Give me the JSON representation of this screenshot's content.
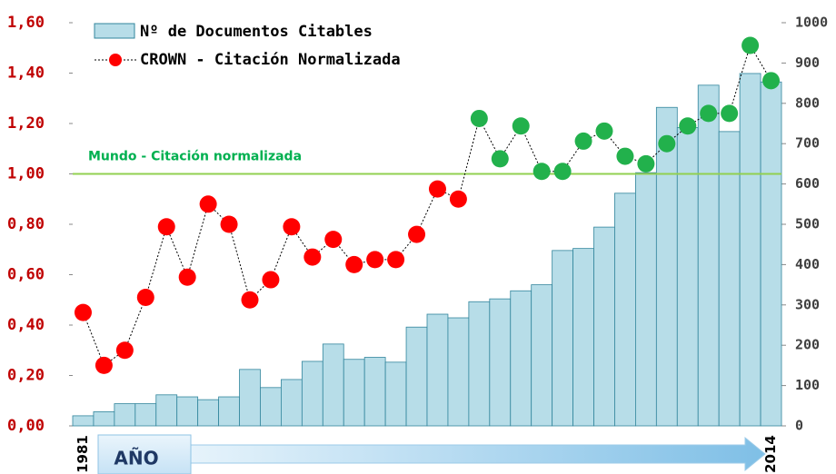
{
  "chart_data": {
    "type": "bar-line",
    "categories": [
      "1981",
      null,
      null,
      null,
      null,
      null,
      null,
      null,
      null,
      null,
      null,
      null,
      null,
      null,
      null,
      null,
      null,
      null,
      null,
      null,
      null,
      null,
      null,
      null,
      null,
      null,
      null,
      null,
      null,
      null,
      null,
      null,
      null,
      "2014"
    ],
    "series": [
      {
        "name": "Nº de Documentos Citables",
        "type": "bar",
        "axis": "y2",
        "color": "#b7dde8",
        "edge_color": "#31859c",
        "values": [
          25,
          35,
          55,
          55,
          77,
          72,
          65,
          72,
          140,
          95,
          115,
          160,
          203,
          165,
          170,
          158,
          245,
          277,
          268,
          308,
          315,
          335,
          350,
          435,
          440,
          493,
          577,
          628,
          790,
          740,
          845,
          730,
          874,
          853
        ]
      },
      {
        "name": "CROWN - Citación Normalizada",
        "type": "line",
        "axis": "y",
        "color": "#ff0000",
        "color_above_reference": "#22b14c",
        "line_color": "#000000",
        "values": [
          0.45,
          0.24,
          0.3,
          0.51,
          0.79,
          0.59,
          0.88,
          0.8,
          0.5,
          0.58,
          0.79,
          0.67,
          0.74,
          0.64,
          0.66,
          0.66,
          0.76,
          0.94,
          0.9,
          1.22,
          1.06,
          1.19,
          1.01,
          1.01,
          1.13,
          1.17,
          1.07,
          1.04,
          1.12,
          1.19,
          1.24,
          1.24,
          1.51,
          1.37
        ]
      }
    ],
    "reference_line": {
      "value": 1,
      "label": "Mundo - Citación normalizada",
      "color": "#92d050"
    },
    "x_label": "AÑO",
    "ylim": [
      0,
      1.6
    ],
    "yticks": [
      {
        "value": 0,
        "label": "0,00"
      },
      {
        "value": 0.2,
        "label": "0,20"
      },
      {
        "value": 0.4,
        "label": "0,40"
      },
      {
        "value": 0.6,
        "label": "0,60"
      },
      {
        "value": 0.8,
        "label": "0,80"
      },
      {
        "value": 1,
        "label": "1,00"
      },
      {
        "value": 1.2,
        "label": "1,20"
      },
      {
        "value": 1.4,
        "label": "1,40"
      },
      {
        "value": 1.6,
        "label": "1,60"
      }
    ],
    "y2lim": [
      0,
      1000
    ],
    "y2ticks": [
      0,
      100,
      200,
      300,
      400,
      500,
      600,
      700,
      800,
      900,
      1000
    ],
    "legend": "top-left"
  }
}
